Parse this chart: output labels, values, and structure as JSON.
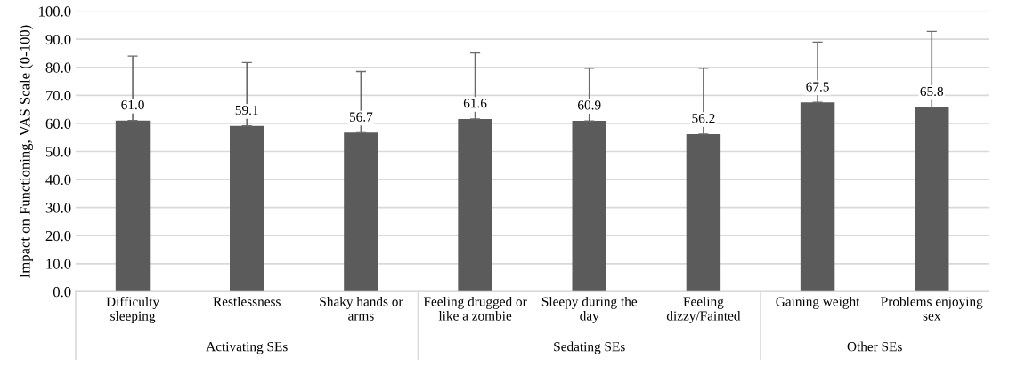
{
  "chart_data": {
    "type": "bar",
    "ylabel": "Impact on Functioning, VAS Scale (0-100)",
    "categories": [
      "Difficulty sleeping",
      "Restlessness",
      "Shaky hands or arms",
      "Feeling drugged or like a zombie",
      "Sleepy during the day",
      "Feeling dizzy/Fainted",
      "Gaining weight",
      "Problems enjoying sex"
    ],
    "values": [
      61.0,
      59.1,
      56.7,
      61.6,
      60.9,
      56.2,
      67.5,
      65.8
    ],
    "errors": [
      [
        61.0,
        84.0
      ],
      [
        59.1,
        81.7
      ],
      [
        56.7,
        78.5
      ],
      [
        61.6,
        85.1
      ],
      [
        60.9,
        79.7
      ],
      [
        56.2,
        79.7
      ],
      [
        67.5,
        89.0
      ],
      [
        65.8,
        92.8
      ]
    ],
    "value_labels": [
      "61.0",
      "59.1",
      "56.7",
      "61.6",
      "60.9",
      "56.2",
      "67.5",
      "65.8"
    ],
    "color": "#5b5b5b",
    "ylim": [
      0,
      100
    ],
    "yticks": [
      {
        "value": 0,
        "label": "0.0"
      },
      {
        "value": 10,
        "label": "10.0"
      },
      {
        "value": 20,
        "label": "20.0"
      },
      {
        "value": 30,
        "label": "30.0"
      },
      {
        "value": 40,
        "label": "40.0"
      },
      {
        "value": 50,
        "label": "50.0"
      },
      {
        "value": 60,
        "label": "60.0"
      },
      {
        "value": 70,
        "label": "70.0"
      },
      {
        "value": 80,
        "label": "80.0"
      },
      {
        "value": 90,
        "label": "90.0"
      },
      {
        "value": 100,
        "label": "100.0"
      }
    ],
    "grid": "y",
    "annotations": [
      "Activating SEs",
      "Sedating SEs",
      "Other SEs"
    ]
  }
}
